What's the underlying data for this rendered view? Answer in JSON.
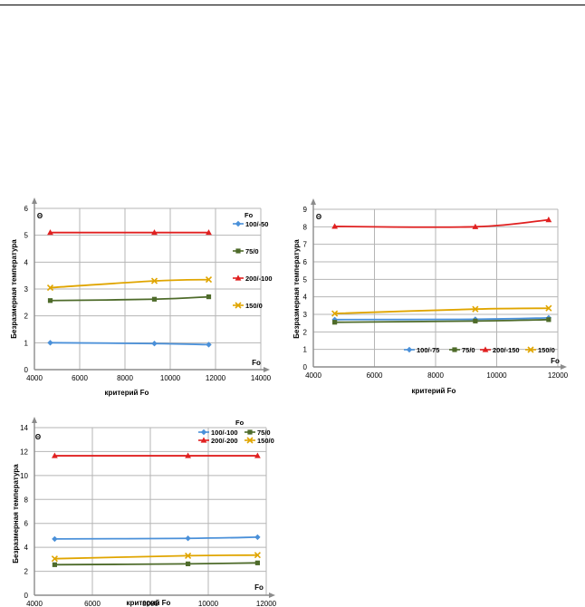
{
  "chart_data": [
    {
      "type": "line",
      "xlabel": "критерий Fo",
      "ylabel": "Безразмерная температура",
      "x_axis_end_label": "Fo",
      "y_axis_end_label": "Θ",
      "legend_title": "Fo",
      "legend_position": "right",
      "xlim": [
        4000,
        14000
      ],
      "xticks": [
        4000,
        6000,
        8000,
        10000,
        12000,
        14000
      ],
      "ylim": [
        0,
        6
      ],
      "yticks": [
        0,
        1,
        2,
        3,
        4,
        5,
        6
      ],
      "grid": true,
      "x": [
        4700,
        9300,
        11700
      ],
      "series": [
        {
          "name": "100/-50",
          "values": [
            1.0,
            0.97,
            0.93
          ],
          "color": "#4a90d9",
          "marker": "diamond"
        },
        {
          "name": "75/0",
          "values": [
            2.57,
            2.62,
            2.71
          ],
          "color": "#4e6b2a",
          "marker": "square"
        },
        {
          "name": "200/-100",
          "values": [
            5.1,
            5.1,
            5.1
          ],
          "color": "#e02020",
          "marker": "triangle"
        },
        {
          "name": "150/0",
          "values": [
            3.05,
            3.3,
            3.35
          ],
          "color": "#e0a500",
          "marker": "x"
        }
      ]
    },
    {
      "type": "line",
      "xlabel": "критерий Fo",
      "ylabel": "Безразмерная температура",
      "x_axis_end_label": "Fo",
      "y_axis_end_label": "Θ",
      "legend_title": "",
      "legend_position": "bottom-right",
      "xlim": [
        4000,
        12000
      ],
      "xticks": [
        4000,
        6000,
        8000,
        10000,
        12000
      ],
      "ylim": [
        0,
        9
      ],
      "yticks": [
        0,
        1,
        2,
        3,
        4,
        5,
        6,
        7,
        8,
        9
      ],
      "grid": true,
      "x": [
        4700,
        9300,
        11700
      ],
      "series": [
        {
          "name": "100/-75",
          "values": [
            2.7,
            2.72,
            2.8
          ],
          "color": "#4a90d9",
          "marker": "diamond"
        },
        {
          "name": "75/0",
          "values": [
            2.55,
            2.62,
            2.7
          ],
          "color": "#4e6b2a",
          "marker": "square"
        },
        {
          "name": "200/-150",
          "values": [
            8.02,
            8.0,
            8.4
          ],
          "color": "#e02020",
          "marker": "triangle"
        },
        {
          "name": "150/0",
          "values": [
            3.05,
            3.3,
            3.35
          ],
          "color": "#e0a500",
          "marker": "x"
        }
      ]
    },
    {
      "type": "line",
      "xlabel": "критерий Fo",
      "ylabel": "Безразмерная температура",
      "x_axis_end_label": "Fo",
      "y_axis_end_label": "Θ",
      "legend_title": "Fo",
      "legend_position": "top-right",
      "xlim": [
        4000,
        12000
      ],
      "xticks": [
        4000,
        6000,
        8000,
        10000,
        12000
      ],
      "ylim": [
        0,
        14
      ],
      "yticks": [
        0,
        2,
        4,
        6,
        8,
        10,
        12,
        14
      ],
      "grid": true,
      "x": [
        4700,
        9300,
        11700
      ],
      "series": [
        {
          "name": "100/-100",
          "values": [
            4.7,
            4.75,
            4.85
          ],
          "color": "#4a90d9",
          "marker": "diamond"
        },
        {
          "name": "75/0",
          "values": [
            2.55,
            2.62,
            2.7
          ],
          "color": "#4e6b2a",
          "marker": "square"
        },
        {
          "name": "200/-200",
          "values": [
            11.65,
            11.65,
            11.65
          ],
          "color": "#e02020",
          "marker": "triangle"
        },
        {
          "name": "150/0",
          "values": [
            3.05,
            3.3,
            3.35
          ],
          "color": "#e0a500",
          "marker": "x"
        }
      ]
    }
  ]
}
